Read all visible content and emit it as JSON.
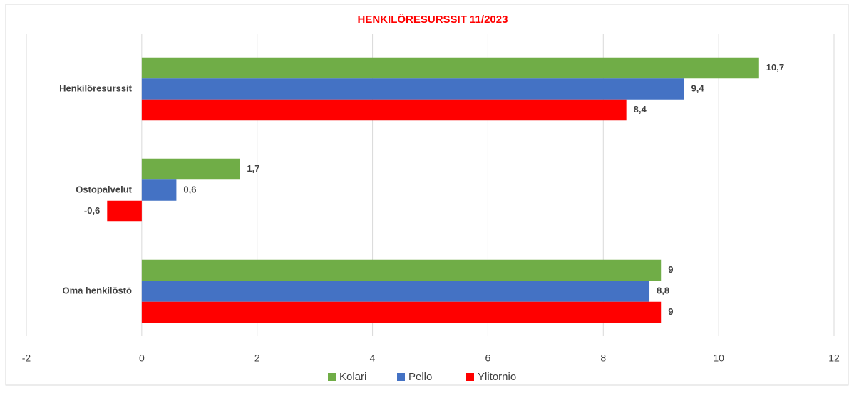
{
  "chart_data": {
    "type": "barh",
    "title": "HENKILÖRESURSSIT  11/2023",
    "categories": [
      "Henkilöresurssit",
      "Ostopalvelut",
      "Oma henkilöstö"
    ],
    "series": [
      {
        "name": "Kolari",
        "color": "#70ad47",
        "values": [
          10.7,
          1.7,
          9
        ],
        "value_labels": [
          "10,7",
          "1,7",
          "9"
        ]
      },
      {
        "name": "Pello",
        "color": "#4472c4",
        "values": [
          9.4,
          0.6,
          8.8
        ],
        "value_labels": [
          "9,4",
          "0,6",
          "8,8"
        ]
      },
      {
        "name": "Ylitornio",
        "color": "#ff0000",
        "values": [
          8.4,
          -0.6,
          9
        ],
        "value_labels": [
          "8,4",
          "-0,6",
          "9"
        ]
      }
    ],
    "xlim": [
      -2,
      12
    ],
    "xticks": [
      -2,
      0,
      2,
      4,
      6,
      8,
      10,
      12
    ],
    "grid": true,
    "legend": "bottom"
  }
}
